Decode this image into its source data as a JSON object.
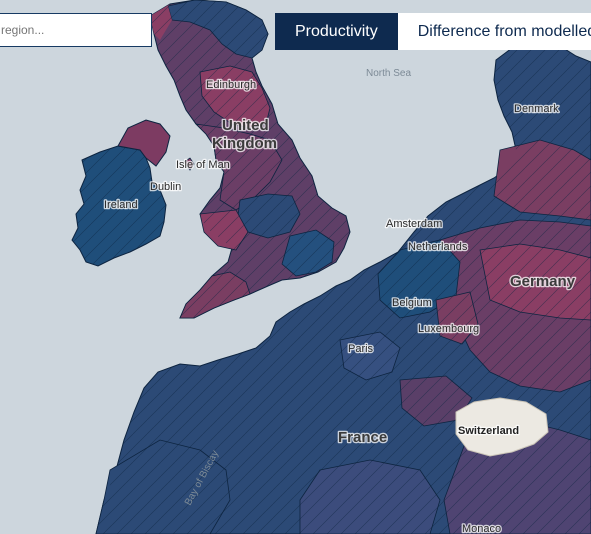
{
  "search": {
    "placeholder": "region..."
  },
  "tabs": [
    {
      "label": "Productivity",
      "active": true
    },
    {
      "label": "Difference from modelled",
      "active": false
    }
  ],
  "colors": {
    "sea": "#cdd6dd",
    "high_productivity": "#1f4e7a",
    "low_productivity": "#7d3b62",
    "no_data": "#ece9e2",
    "tab_active_bg": "#0e2a4f"
  },
  "map": {
    "countries": [
      "United Kingdom",
      "Ireland",
      "France",
      "Germany",
      "Switzerland",
      "Netherlands",
      "Belgium",
      "Luxembourg",
      "Denmark"
    ],
    "labels": {
      "north_sea": "North Sea",
      "bay_of_biscay": "Bay of Biscay",
      "edinburgh": "Edinburgh",
      "united": "United",
      "kingdom": "Kingdom",
      "isle_of_man": "Isle of Man",
      "dublin": "Dublin",
      "ireland": "Ireland",
      "amsterdam": "Amsterdam",
      "netherlands": "Netherlands",
      "germany": "Germany",
      "belgium": "Belgium",
      "luxembourg": "Luxembourg",
      "paris": "Paris",
      "france": "France",
      "switzerland": "Switzerland",
      "monaco": "Monaco",
      "denmark": "Denmark"
    }
  }
}
